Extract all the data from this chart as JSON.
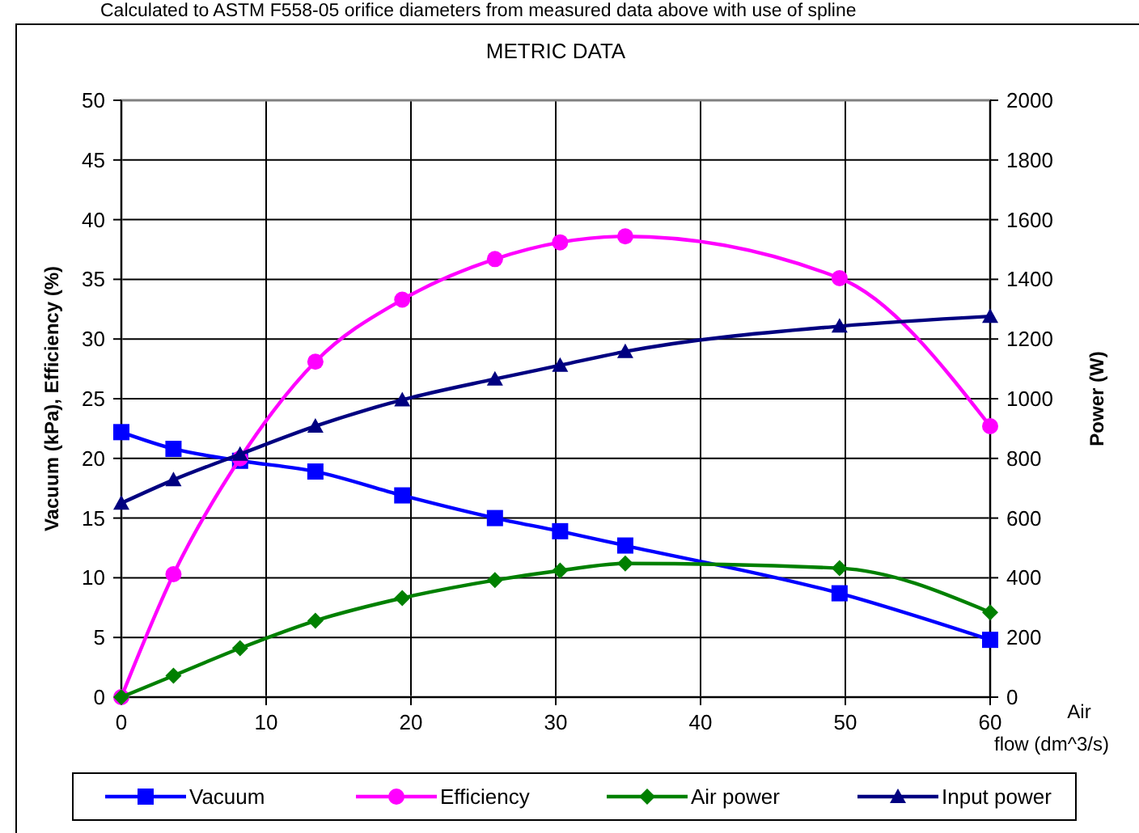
{
  "chart_data": {
    "type": "line",
    "title": "METRIC DATA",
    "annotations": [
      "Calculated to ASTM F558-05 orifice diameters from measured data above with use of spline"
    ],
    "xlabel": "Air flow (dm^3/s)",
    "ylabel": "Vacuum (kPa), Efficiency (%)",
    "y2label": "Power (W)",
    "x": [
      0,
      3.6,
      8.2,
      13.4,
      19.4,
      25.8,
      30.3,
      34.8,
      49.6,
      60
    ],
    "xlim": [
      0,
      60
    ],
    "xticks": [
      0,
      10,
      20,
      30,
      40,
      50,
      60
    ],
    "ylim": [
      0,
      50
    ],
    "yticks": [
      0,
      5,
      10,
      15,
      20,
      25,
      30,
      35,
      40,
      45,
      50
    ],
    "y2lim": [
      0,
      2000
    ],
    "y2ticks": [
      0,
      200,
      400,
      600,
      800,
      1000,
      1200,
      1400,
      1600,
      1800,
      2000
    ],
    "grid": true,
    "legend": "bottom",
    "line_style": "solid",
    "series": [
      {
        "name": "Vacuum",
        "color": "#0000ff",
        "marker": "square",
        "values": [
          22.2,
          20.8,
          19.8,
          18.9,
          16.9,
          15.0,
          13.9,
          12.7,
          8.7,
          4.8
        ]
      },
      {
        "name": "Efficiency",
        "color": "#ff00ff",
        "marker": "circle",
        "values": [
          0,
          10.3,
          20.0,
          28.1,
          33.3,
          36.7,
          38.1,
          38.6,
          35.1,
          22.7
        ]
      },
      {
        "name": "Air power",
        "color": "#008000",
        "marker": "diamond",
        "axis": "y2",
        "values": [
          0,
          72,
          164,
          256,
          332,
          392,
          424,
          448,
          432,
          284
        ]
      },
      {
        "name": "Input power",
        "color": "#000080",
        "marker": "triangle",
        "axis": "y2",
        "values": [
          650,
          728,
          814,
          908,
          996,
          1066,
          1112,
          1158,
          1243,
          1276
        ]
      }
    ]
  }
}
